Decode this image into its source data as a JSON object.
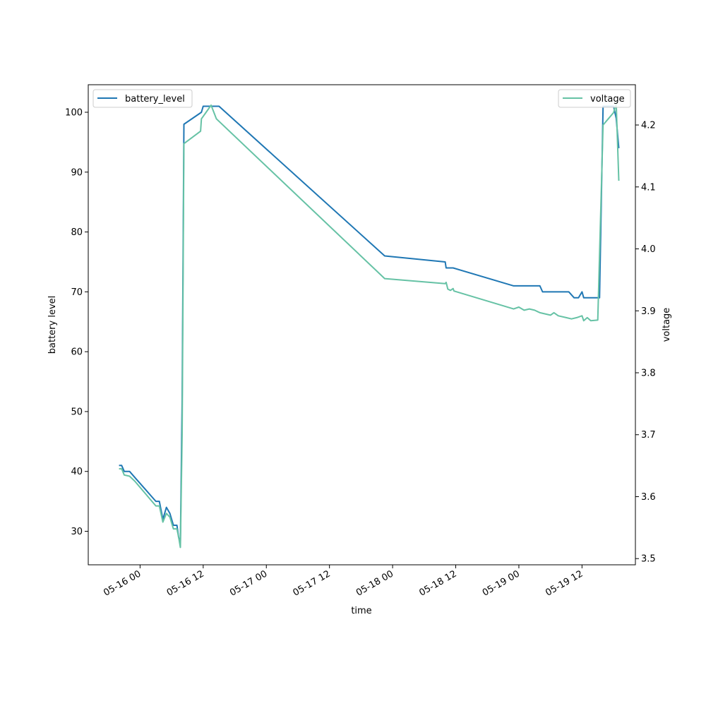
{
  "chart_data": {
    "type": "line",
    "xlabel": "time",
    "ylabel_left": "battery level",
    "ylabel_right": "voltage",
    "xlim": [
      "2025-05-15 14:09",
      "2025-05-19 22:09"
    ],
    "ylim_left": [
      24.4,
      104.6
    ],
    "ylim_right": [
      3.49,
      4.265
    ],
    "x_ticks": [
      "05-16 00",
      "05-16 12",
      "05-17 00",
      "05-17 12",
      "05-18 00",
      "05-18 12",
      "05-19 00",
      "05-19 12"
    ],
    "y_ticks_left": [
      "30",
      "40",
      "50",
      "60",
      "70",
      "80",
      "90",
      "100"
    ],
    "y_ticks_right": [
      "3.5",
      "3.6",
      "3.7",
      "3.8",
      "3.9",
      "4.0",
      "4.1",
      "4.2"
    ],
    "legend_left": {
      "placement": "upper-left",
      "label": "battery_level"
    },
    "legend_right": {
      "placement": "upper-right",
      "label": "voltage"
    },
    "series": [
      {
        "name": "battery_level",
        "axis": "left",
        "color": "#1f77b4",
        "points": [
          [
            "2025-05-15 20:00",
            41
          ],
          [
            "2025-05-15 20:30",
            41
          ],
          [
            "2025-05-15 21:00",
            40
          ],
          [
            "2025-05-15 22:00",
            40
          ],
          [
            "2025-05-15 23:00",
            39
          ],
          [
            "2025-05-16 00:00",
            38
          ],
          [
            "2025-05-16 01:00",
            37
          ],
          [
            "2025-05-16 02:00",
            36
          ],
          [
            "2025-05-16 03:00",
            35
          ],
          [
            "2025-05-16 03:40",
            35
          ],
          [
            "2025-05-16 04:20",
            32
          ],
          [
            "2025-05-16 05:00",
            34
          ],
          [
            "2025-05-16 05:40",
            33
          ],
          [
            "2025-05-16 06:20",
            31
          ],
          [
            "2025-05-16 07:00",
            31
          ],
          [
            "2025-05-16 07:20",
            29
          ],
          [
            "2025-05-16 07:40",
            28
          ],
          [
            "2025-05-16 08:00",
            52
          ],
          [
            "2025-05-16 08:20",
            98
          ],
          [
            "2025-05-16 11:40",
            100
          ],
          [
            "2025-05-16 12:00",
            101
          ],
          [
            "2025-05-16 15:00",
            101
          ],
          [
            "2025-05-17 22:30",
            76
          ],
          [
            "2025-05-18 10:00",
            75
          ],
          [
            "2025-05-18 10:10",
            74
          ],
          [
            "2025-05-18 11:30",
            74
          ],
          [
            "2025-05-18 23:00",
            71
          ],
          [
            "2025-05-19 04:00",
            71
          ],
          [
            "2025-05-19 04:30",
            70
          ],
          [
            "2025-05-19 09:30",
            70
          ],
          [
            "2025-05-19 10:30",
            69
          ],
          [
            "2025-05-19 11:20",
            69
          ],
          [
            "2025-05-19 12:00",
            70
          ],
          [
            "2025-05-19 12:20",
            69
          ],
          [
            "2025-05-19 15:20",
            69
          ],
          [
            "2025-05-19 16:00",
            101
          ],
          [
            "2025-05-19 18:00",
            101
          ],
          [
            "2025-05-19 18:30",
            99
          ],
          [
            "2025-05-19 19:00",
            94
          ]
        ]
      },
      {
        "name": "voltage",
        "axis": "right",
        "color": "#66c2a5",
        "points": [
          [
            "2025-05-15 20:00",
            3.645
          ],
          [
            "2025-05-15 20:30",
            3.645
          ],
          [
            "2025-05-15 21:00",
            3.635
          ],
          [
            "2025-05-15 22:00",
            3.633
          ],
          [
            "2025-05-15 23:00",
            3.625
          ],
          [
            "2025-05-16 00:00",
            3.615
          ],
          [
            "2025-05-16 01:00",
            3.605
          ],
          [
            "2025-05-16 02:00",
            3.595
          ],
          [
            "2025-05-16 03:00",
            3.585
          ],
          [
            "2025-05-16 03:40",
            3.585
          ],
          [
            "2025-05-16 04:20",
            3.559
          ],
          [
            "2025-05-16 05:00",
            3.573
          ],
          [
            "2025-05-16 05:40",
            3.567
          ],
          [
            "2025-05-16 06:20",
            3.548
          ],
          [
            "2025-05-16 07:00",
            3.548
          ],
          [
            "2025-05-16 07:20",
            3.535
          ],
          [
            "2025-05-16 07:40",
            3.518
          ],
          [
            "2025-05-16 08:00",
            3.7
          ],
          [
            "2025-05-16 08:20",
            4.17
          ],
          [
            "2025-05-16 11:30",
            4.19
          ],
          [
            "2025-05-16 11:40",
            4.21
          ],
          [
            "2025-05-16 12:30",
            4.22
          ],
          [
            "2025-05-16 13:30",
            4.232
          ],
          [
            "2025-05-16 14:30",
            4.21
          ],
          [
            "2025-05-17 22:30",
            3.952
          ],
          [
            "2025-05-18 10:00",
            3.944
          ],
          [
            "2025-05-18 10:10",
            3.946
          ],
          [
            "2025-05-18 10:30",
            3.935
          ],
          [
            "2025-05-18 11:00",
            3.933
          ],
          [
            "2025-05-18 11:30",
            3.936
          ],
          [
            "2025-05-18 11:40",
            3.932
          ],
          [
            "2025-05-18 23:00",
            3.903
          ],
          [
            "2025-05-19 00:00",
            3.906
          ],
          [
            "2025-05-19 01:00",
            3.901
          ],
          [
            "2025-05-19 02:00",
            3.903
          ],
          [
            "2025-05-19 03:00",
            3.901
          ],
          [
            "2025-05-19 04:00",
            3.897
          ],
          [
            "2025-05-19 05:00",
            3.895
          ],
          [
            "2025-05-19 06:00",
            3.893
          ],
          [
            "2025-05-19 06:40",
            3.897
          ],
          [
            "2025-05-19 07:30",
            3.892
          ],
          [
            "2025-05-19 09:00",
            3.889
          ],
          [
            "2025-05-19 10:00",
            3.887
          ],
          [
            "2025-05-19 11:00",
            3.889
          ],
          [
            "2025-05-19 12:00",
            3.892
          ],
          [
            "2025-05-19 12:20",
            3.884
          ],
          [
            "2025-05-19 13:00",
            3.889
          ],
          [
            "2025-05-19 13:40",
            3.884
          ],
          [
            "2025-05-19 15:00",
            3.885
          ],
          [
            "2025-05-19 16:00",
            4.2
          ],
          [
            "2025-05-19 17:00",
            4.21
          ],
          [
            "2025-05-19 18:00",
            4.22
          ],
          [
            "2025-05-19 18:30",
            4.235
          ],
          [
            "2025-05-19 19:00",
            4.11
          ]
        ]
      }
    ]
  }
}
